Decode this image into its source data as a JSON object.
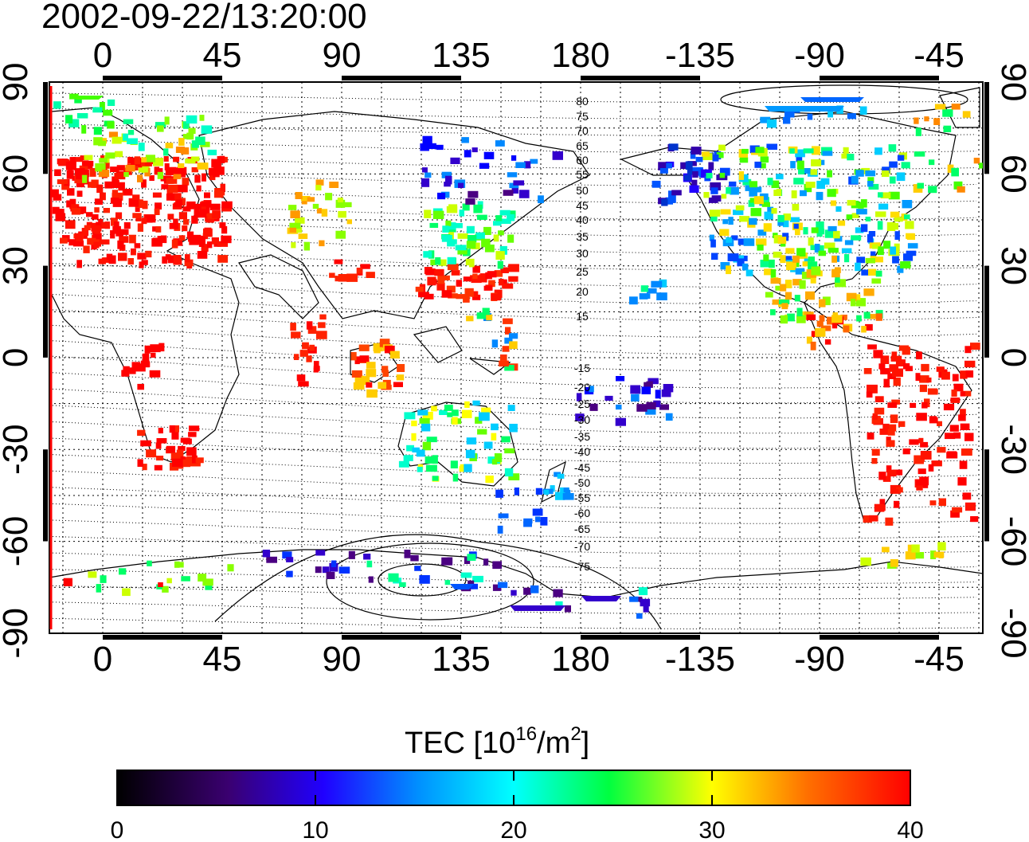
{
  "timestamp": "2002-09-22/13:20:00",
  "map": {
    "lon_ticks": [
      "0",
      "45",
      "90",
      "135",
      "180",
      "-135",
      "-90",
      "-45"
    ],
    "lat_ticks": [
      "90",
      "60",
      "30",
      "0",
      "-30",
      "-60",
      "-90"
    ],
    "mag_lat_labels_north": [
      "80",
      "75",
      "70",
      "65",
      "60",
      "55",
      "50",
      "45",
      "40",
      "35",
      "30",
      "25",
      "20",
      "15"
    ],
    "mag_lat_labels_south": [
      "-15",
      "-20",
      "-25",
      "-30",
      "-35",
      "-40",
      "-45",
      "-50",
      "-55",
      "-60",
      "-65",
      "-70",
      "-75"
    ]
  },
  "colorbar": {
    "label_main": "TEC  [10",
    "label_sup1": "16",
    "label_mid": "/m",
    "label_sup2": "2",
    "label_end": "]",
    "ticks": [
      "0",
      "10",
      "20",
      "30",
      "40"
    ],
    "min": 0,
    "max": 40,
    "colors": [
      "#000000",
      "#4b0082",
      "#0000ff",
      "#00ffff",
      "#00ff00",
      "#ffff00",
      "#ff8c00",
      "#ff0000"
    ]
  }
}
